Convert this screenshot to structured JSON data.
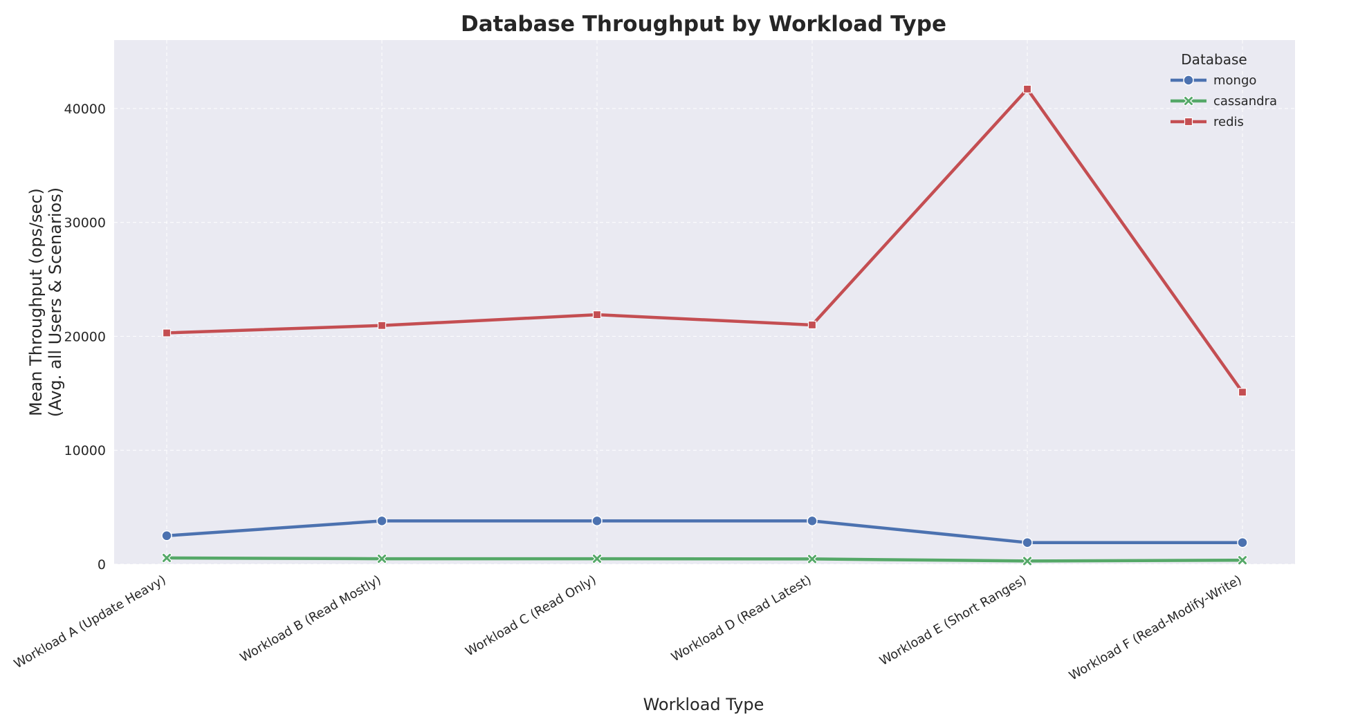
{
  "chart_data": {
    "type": "line",
    "title": "Database Throughput by Workload Type",
    "xlabel": "Workload Type",
    "ylabel_lines": [
      "Mean Throughput (ops/sec)",
      "(Avg. all Users & Scenarios)"
    ],
    "categories": [
      "Workload A (Update Heavy)",
      "Workload B (Read Mostly)",
      "Workload C (Read Only)",
      "Workload D (Read Latest)",
      "Workload E (Short Ranges)",
      "Workload F (Read-Modify-Write)"
    ],
    "ylim": [
      0,
      46000
    ],
    "yticks": [
      0,
      10000,
      20000,
      30000,
      40000
    ],
    "grid": true,
    "legend": {
      "title": "Database",
      "position": "top-right"
    },
    "series": [
      {
        "name": "mongo",
        "color": "#4C72B0",
        "marker": "circle",
        "values": [
          2500,
          3800,
          3800,
          3800,
          1900,
          1900
        ]
      },
      {
        "name": "cassandra",
        "color": "#55A868",
        "marker": "x",
        "values": [
          550,
          480,
          480,
          460,
          280,
          350
        ]
      },
      {
        "name": "redis",
        "color": "#C44E52",
        "marker": "square",
        "values": [
          20300,
          20950,
          21900,
          21000,
          41700,
          15100
        ]
      }
    ]
  }
}
